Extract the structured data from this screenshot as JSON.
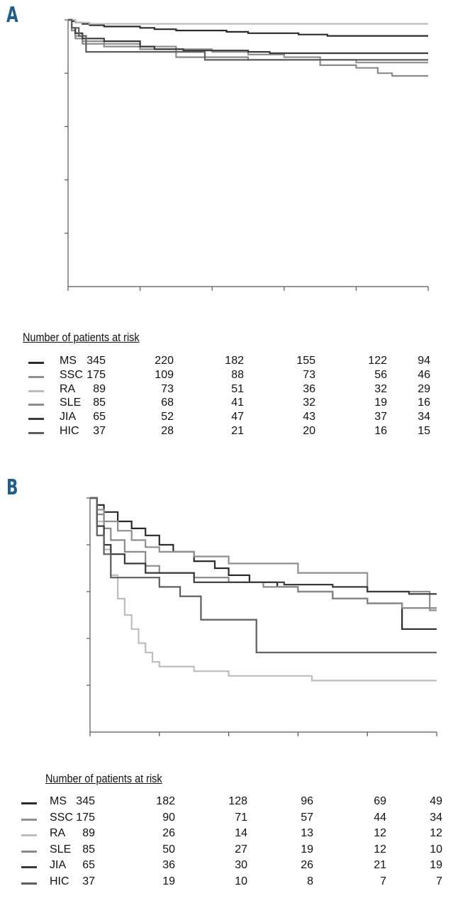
{
  "panels": [
    {
      "letter": "A",
      "risk_title": "Number of patients at risk",
      "risk_table": [
        {
          "group": "MS",
          "values": [
            "345",
            "220",
            "182",
            "155",
            "122",
            "94"
          ]
        },
        {
          "group": "SSC",
          "values": [
            "175",
            "109",
            "88",
            "73",
            "56",
            "46"
          ]
        },
        {
          "group": "RA",
          "values": [
            "89",
            "73",
            "51",
            "36",
            "32",
            "29"
          ]
        },
        {
          "group": "SLE",
          "values": [
            "85",
            "68",
            "41",
            "32",
            "19",
            "16"
          ]
        },
        {
          "group": "JIA",
          "values": [
            "65",
            "52",
            "47",
            "43",
            "37",
            "34"
          ]
        },
        {
          "group": "HIC",
          "values": [
            "37",
            "28",
            "21",
            "20",
            "16",
            "15"
          ]
        }
      ]
    },
    {
      "letter": "B",
      "risk_title": "Number of patients at risk",
      "risk_table": [
        {
          "group": "MS",
          "values": [
            "345",
            "182",
            "128",
            "96",
            "69",
            "49"
          ]
        },
        {
          "group": "SSC",
          "values": [
            "175",
            "90",
            "71",
            "57",
            "44",
            "34"
          ]
        },
        {
          "group": "RA",
          "values": [
            "89",
            "26",
            "14",
            "13",
            "12",
            "12"
          ]
        },
        {
          "group": "SLE",
          "values": [
            "85",
            "50",
            "27",
            "19",
            "12",
            "10"
          ]
        },
        {
          "group": "JIA",
          "values": [
            "65",
            "36",
            "30",
            "26",
            "21",
            "19"
          ]
        },
        {
          "group": "HIC",
          "values": [
            "37",
            "19",
            "10",
            "8",
            "7",
            "7"
          ]
        }
      ]
    }
  ],
  "colors": {
    "MS": "#2b2b2b",
    "SSC": "#8f8f8f",
    "RA": "#bdbdbd",
    "SLE": "#8a8a8a",
    "JIA": "#3a3a3a",
    "HIC": "#5e5e5e",
    "letter": "#1f5f8b"
  },
  "chart_data": [
    {
      "type": "line",
      "step": true,
      "xlim": [
        0,
        5
      ],
      "ylim": [
        0,
        1
      ],
      "x_ticks": [
        0,
        1,
        2,
        3,
        4,
        5
      ],
      "y_ticks": [
        0.2,
        0.4,
        0.6,
        0.8,
        1.0
      ],
      "tick_labels_shown": false,
      "series": [
        {
          "name": "MS",
          "x": [
            0,
            0.05,
            0.1,
            0.2,
            0.3,
            0.5,
            1.0,
            1.2,
            1.5,
            2.2,
            2.5,
            3.2,
            3.6,
            5.0
          ],
          "y": [
            1.0,
            0.995,
            0.99,
            0.985,
            0.98,
            0.975,
            0.97,
            0.965,
            0.96,
            0.955,
            0.95,
            0.945,
            0.94,
            0.94
          ]
        },
        {
          "name": "SSC",
          "x": [
            0,
            0.05,
            0.1,
            0.2,
            0.5,
            1.0,
            1.5,
            2.0,
            2.5,
            3.0,
            3.5,
            4.0,
            5.0
          ],
          "y": [
            1.0,
            0.97,
            0.94,
            0.92,
            0.91,
            0.9,
            0.89,
            0.88,
            0.87,
            0.86,
            0.85,
            0.84,
            0.84
          ]
        },
        {
          "name": "RA",
          "x": [
            0,
            0.1,
            0.3,
            5.0
          ],
          "y": [
            1.0,
            0.99,
            0.985,
            0.985
          ]
        },
        {
          "name": "SLE",
          "x": [
            0,
            0.05,
            0.1,
            0.2,
            0.5,
            1.0,
            1.5,
            2.0,
            2.5,
            3.5,
            4.0,
            4.3,
            4.5,
            5.0
          ],
          "y": [
            1.0,
            0.96,
            0.93,
            0.91,
            0.9,
            0.89,
            0.86,
            0.86,
            0.85,
            0.83,
            0.82,
            0.8,
            0.79,
            0.79
          ]
        },
        {
          "name": "JIA",
          "x": [
            0,
            0.05,
            0.1,
            0.2,
            0.5,
            1.0,
            1.2,
            1.6,
            2.5,
            2.8,
            5.0
          ],
          "y": [
            1.0,
            0.97,
            0.95,
            0.93,
            0.92,
            0.9,
            0.89,
            0.885,
            0.88,
            0.875,
            0.875
          ]
        },
        {
          "name": "HIC",
          "x": [
            0,
            0.05,
            0.15,
            0.25,
            1.9,
            5.0
          ],
          "y": [
            1.0,
            0.97,
            0.94,
            0.88,
            0.85,
            0.85
          ]
        }
      ]
    },
    {
      "type": "line",
      "step": true,
      "xlim": [
        0,
        5
      ],
      "ylim": [
        0,
        1
      ],
      "x_ticks": [
        0,
        1,
        2,
        3,
        4,
        5
      ],
      "y_ticks": [
        0.2,
        0.4,
        0.6,
        0.8,
        1.0
      ],
      "tick_labels_shown": false,
      "series": [
        {
          "name": "MS",
          "x": [
            0,
            0.1,
            0.2,
            0.4,
            0.6,
            0.8,
            1.0,
            1.2,
            1.5,
            1.8,
            2.0,
            2.3,
            2.7,
            3.0,
            3.5,
            4.0,
            4.5,
            5.0
          ],
          "y": [
            1.0,
            0.97,
            0.94,
            0.9,
            0.87,
            0.84,
            0.8,
            0.77,
            0.73,
            0.7,
            0.67,
            0.64,
            0.62,
            0.6,
            0.57,
            0.55,
            0.44,
            0.44
          ]
        },
        {
          "name": "SSC",
          "x": [
            0,
            0.1,
            0.2,
            0.4,
            0.6,
            0.8,
            1.0,
            1.5,
            2.0,
            3.0,
            3.5,
            4.0,
            4.6,
            4.9,
            5.0
          ],
          "y": [
            1.0,
            0.95,
            0.9,
            0.86,
            0.82,
            0.79,
            0.77,
            0.75,
            0.72,
            0.68,
            0.68,
            0.6,
            0.6,
            0.52,
            0.52
          ]
        },
        {
          "name": "RA",
          "x": [
            0,
            0.1,
            0.2,
            0.3,
            0.4,
            0.5,
            0.6,
            0.7,
            0.8,
            0.9,
            1.0,
            1.5,
            2.0,
            3.2,
            5.0
          ],
          "y": [
            1.0,
            0.9,
            0.78,
            0.67,
            0.57,
            0.5,
            0.44,
            0.38,
            0.34,
            0.3,
            0.28,
            0.26,
            0.24,
            0.22,
            0.22
          ]
        },
        {
          "name": "SLE",
          "x": [
            0,
            0.1,
            0.2,
            0.3,
            0.5,
            0.8,
            1.0,
            1.5,
            2.0,
            2.5,
            3.0,
            3.5,
            4.0,
            4.5,
            5.0
          ],
          "y": [
            1.0,
            0.93,
            0.87,
            0.82,
            0.77,
            0.71,
            0.68,
            0.66,
            0.64,
            0.62,
            0.6,
            0.57,
            0.55,
            0.53,
            0.53
          ]
        },
        {
          "name": "JIA",
          "x": [
            0,
            0.1,
            0.2,
            0.3,
            0.5,
            0.8,
            1.5,
            2.0,
            2.8,
            3.5,
            4.0,
            4.6,
            5.0
          ],
          "y": [
            1.0,
            0.88,
            0.8,
            0.76,
            0.72,
            0.68,
            0.64,
            0.64,
            0.63,
            0.62,
            0.6,
            0.59,
            0.59
          ]
        },
        {
          "name": "HIC",
          "x": [
            0,
            0.1,
            0.2,
            0.3,
            1.0,
            1.3,
            1.6,
            2.4,
            3.0,
            5.0
          ],
          "y": [
            1.0,
            0.84,
            0.76,
            0.66,
            0.62,
            0.58,
            0.48,
            0.34,
            0.34,
            0.34
          ]
        }
      ]
    }
  ]
}
